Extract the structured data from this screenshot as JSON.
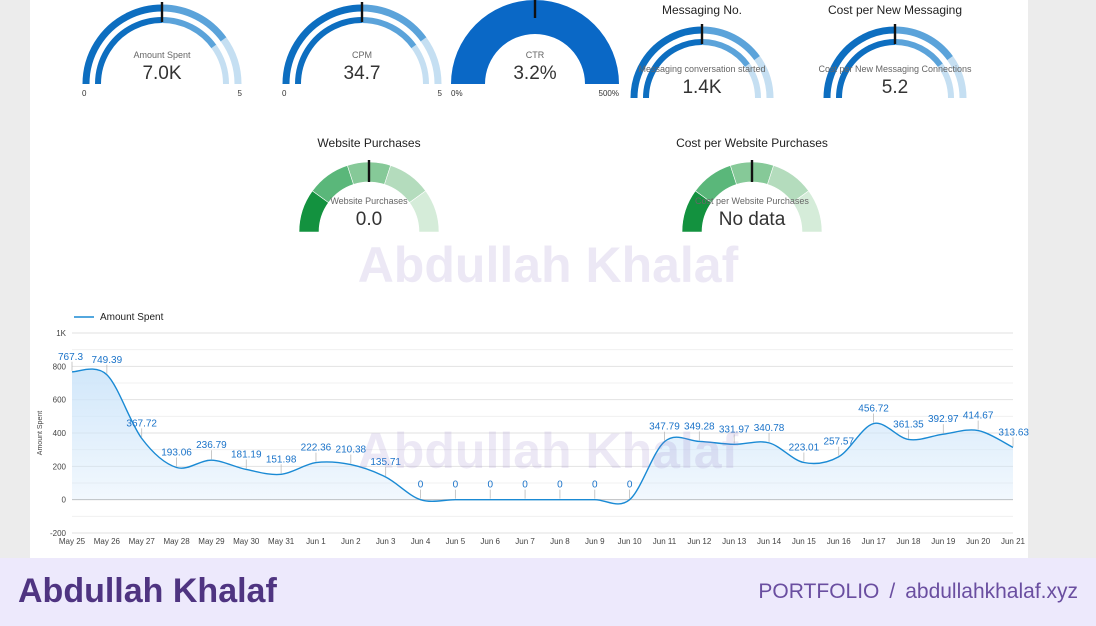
{
  "gauges": [
    {
      "title": "",
      "label": "Amount Spent",
      "value_text": "7.0K",
      "min_label": "0",
      "max_label": "5",
      "fill_fraction": 1,
      "palette": "blue",
      "style": "double"
    },
    {
      "title": "",
      "label": "CPM",
      "value_text": "34.7",
      "min_label": "0",
      "max_label": "5",
      "fill_fraction": 1,
      "palette": "blue",
      "style": "double"
    },
    {
      "title": "",
      "label": "CTR",
      "value_text": "3.2%",
      "min_label": "0%",
      "max_label": "500%",
      "fill_fraction": 1,
      "palette": "blue",
      "style": "solid"
    },
    {
      "title": "Messaging No.",
      "label": "Messaging conversation started",
      "value_text": "1.4K",
      "min_label": "",
      "max_label": "",
      "fill_fraction": 1,
      "palette": "blue",
      "style": "double"
    },
    {
      "title": "Cost per New Messaging",
      "label": "Cost per New Messaging Connections",
      "value_text": "5.2",
      "min_label": "",
      "max_label": "",
      "fill_fraction": 1,
      "palette": "blue",
      "style": "double"
    },
    {
      "title": "Website Purchases",
      "label": "Website Purchases",
      "value_text": "0.0",
      "min_label": "",
      "max_label": "",
      "fill_fraction": 1,
      "palette": "green",
      "style": "segmented"
    },
    {
      "title": "Cost per Website Purchases",
      "label": "Cost per Website Purchases",
      "value_text": "No data",
      "min_label": "",
      "max_label": "",
      "fill_fraction": 1,
      "palette": "green",
      "style": "segmented"
    }
  ],
  "colors": {
    "blue_dark": "#0d6ec0",
    "blue_mid": "#5ba3da",
    "blue_light": "#c5dff2",
    "blue_solid": "#0a68c6",
    "green_dark": "#13923f",
    "green_mid": "#5ab77a",
    "green_soft": "#86c998",
    "green_light": "#b4dcbd",
    "green_pale": "#d5ecd9",
    "line": "#1a8ad4",
    "area": "#cfe6fa"
  },
  "watermark": "Abdullah Khalaf",
  "chart_data": {
    "type": "area",
    "legend_position": "top-left",
    "grid": true,
    "xlabel": "",
    "ylabel": "Amount Spent",
    "ylim": [
      -200,
      1000
    ],
    "yticks": [
      "-200",
      "0",
      "200",
      "400",
      "600",
      "800",
      "1K"
    ],
    "categories": [
      "May 25",
      "May 26",
      "May 27",
      "May 28",
      "May 29",
      "May 30",
      "May 31",
      "Jun 1",
      "Jun 2",
      "Jun 3",
      "Jun 4",
      "Jun 5",
      "Jun 6",
      "Jun 7",
      "Jun 8",
      "Jun 9",
      "Jun 10",
      "Jun 11",
      "Jun 12",
      "Jun 13",
      "Jun 14",
      "Jun 15",
      "Jun 16",
      "Jun 17",
      "Jun 18",
      "Jun 19",
      "Jun 20",
      "Jun 21"
    ],
    "series": [
      {
        "name": "Amount Spent",
        "values": [
          767.3,
          749.39,
          367.72,
          193.06,
          236.79,
          181.19,
          151.98,
          222.36,
          210.38,
          135.71,
          0,
          0,
          0,
          0,
          0,
          0,
          0,
          347.79,
          349.28,
          331.97,
          340.78,
          223.01,
          257.57,
          456.72,
          361.35,
          392.97,
          414.67,
          313.63
        ]
      }
    ]
  },
  "footer": {
    "name": "Abdullah Khalaf",
    "portfolio": "PORTFOLIO",
    "separator": "/",
    "site": "abdullahkhalaf.xyz"
  }
}
